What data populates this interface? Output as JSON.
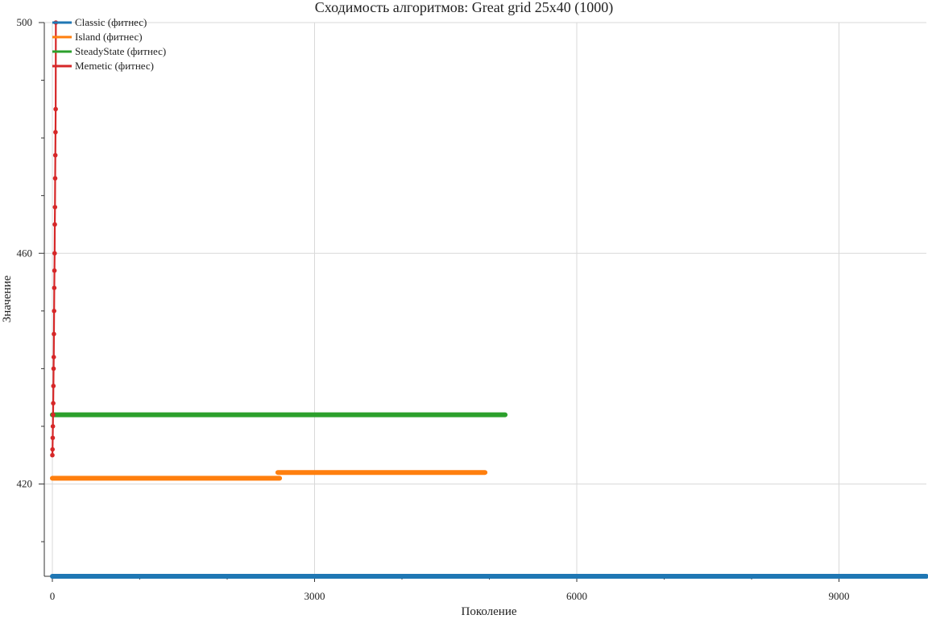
{
  "chart_data": {
    "type": "line",
    "title": "Сходимость алгоритмов: Great grid 25x40 (1000)",
    "xlabel": "Поколение",
    "ylabel": "Значение",
    "xlim": [
      0,
      10000
    ],
    "ylim": [
      404,
      500
    ],
    "x_ticks": [
      0,
      3000,
      6000,
      9000
    ],
    "x_minor_ticks": [
      1000,
      2000,
      4000,
      5000,
      7000,
      8000
    ],
    "y_ticks": [
      420,
      460,
      500
    ],
    "y_minor_ticks": [
      410,
      430,
      440,
      450,
      470,
      480,
      490
    ],
    "grid": true,
    "legend_position": "top-left",
    "series": [
      {
        "name": "Classic (фитнес)",
        "color": "#1f77b4",
        "style": "dense",
        "segments": [
          {
            "x0": 0,
            "x1": 10000,
            "y": 404
          }
        ]
      },
      {
        "name": "Island (фитнес)",
        "color": "#ff7f0e",
        "style": "dense",
        "segments": [
          {
            "x0": 0,
            "x1": 2600,
            "y": 421
          },
          {
            "x0": 2580,
            "x1": 4950,
            "y": 422
          }
        ]
      },
      {
        "name": "SteadyState (фитнес)",
        "color": "#2ca02c",
        "style": "dense",
        "segments": [
          {
            "x0": 0,
            "x1": 5180,
            "y": 432
          }
        ]
      },
      {
        "name": "Memetic (фитнес)",
        "color": "#d62728",
        "style": "markers",
        "x": [
          0,
          2,
          4,
          6,
          8,
          10,
          12,
          14,
          16,
          18,
          20,
          22,
          24,
          26,
          28,
          30,
          32,
          34,
          36,
          38,
          40
        ],
        "y": [
          425,
          426,
          428,
          430,
          432,
          434,
          437,
          440,
          442,
          446,
          450,
          454,
          457,
          460,
          465,
          468,
          473,
          477,
          481,
          485,
          500
        ]
      }
    ]
  }
}
